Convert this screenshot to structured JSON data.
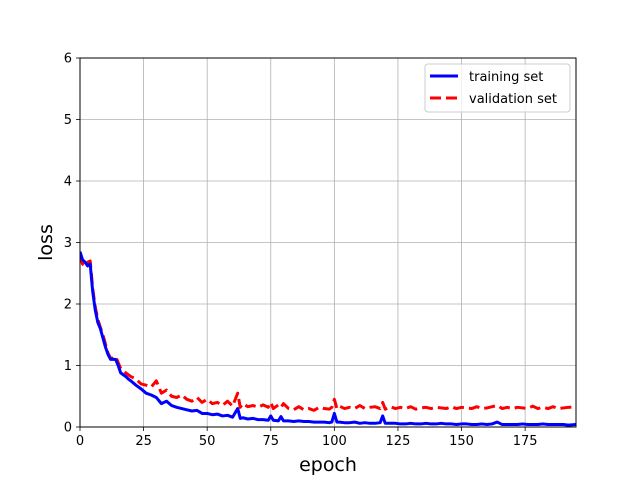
{
  "chart_data": {
    "type": "line",
    "xlabel": "epoch",
    "ylabel": "loss",
    "xlim": [
      0,
      195
    ],
    "ylim": [
      0,
      6
    ],
    "xticks": [
      0,
      25,
      50,
      75,
      100,
      125,
      150,
      175
    ],
    "yticks": [
      0,
      1,
      2,
      3,
      4,
      5,
      6
    ],
    "grid": true,
    "legend_position": "top-right",
    "series": [
      {
        "name": "training set",
        "color": "#0000ff",
        "style": "solid",
        "x": [
          0,
          1,
          2,
          3,
          4,
          5,
          6,
          7,
          8,
          9,
          10,
          11,
          12,
          13,
          14,
          15,
          16,
          17,
          18,
          19,
          20,
          22,
          24,
          26,
          28,
          30,
          32,
          34,
          36,
          38,
          40,
          42,
          44,
          46,
          48,
          50,
          52,
          54,
          56,
          58,
          60,
          62,
          63,
          64,
          66,
          68,
          70,
          72,
          74,
          75,
          76,
          78,
          79,
          80,
          82,
          84,
          86,
          88,
          90,
          92,
          94,
          96,
          98,
          99,
          100,
          101,
          102,
          104,
          106,
          108,
          110,
          112,
          114,
          116,
          118,
          119,
          120,
          122,
          124,
          126,
          128,
          130,
          132,
          134,
          136,
          138,
          140,
          142,
          144,
          146,
          148,
          150,
          152,
          154,
          156,
          158,
          160,
          162,
          164,
          166,
          168,
          170,
          172,
          174,
          176,
          178,
          180,
          182,
          184,
          186,
          188,
          190,
          192,
          195
        ],
        "y": [
          2.85,
          2.72,
          2.68,
          2.62,
          2.65,
          2.2,
          1.9,
          1.7,
          1.6,
          1.45,
          1.3,
          1.18,
          1.1,
          1.1,
          1.1,
          1.0,
          0.88,
          0.85,
          0.82,
          0.78,
          0.75,
          0.68,
          0.62,
          0.55,
          0.52,
          0.48,
          0.38,
          0.42,
          0.35,
          0.32,
          0.3,
          0.28,
          0.26,
          0.27,
          0.22,
          0.22,
          0.2,
          0.21,
          0.18,
          0.19,
          0.16,
          0.3,
          0.14,
          0.15,
          0.13,
          0.14,
          0.12,
          0.12,
          0.11,
          0.18,
          0.11,
          0.1,
          0.17,
          0.1,
          0.1,
          0.09,
          0.1,
          0.09,
          0.09,
          0.08,
          0.08,
          0.08,
          0.07,
          0.08,
          0.22,
          0.08,
          0.08,
          0.07,
          0.07,
          0.08,
          0.06,
          0.07,
          0.06,
          0.06,
          0.07,
          0.18,
          0.06,
          0.06,
          0.06,
          0.05,
          0.05,
          0.06,
          0.05,
          0.05,
          0.06,
          0.05,
          0.05,
          0.06,
          0.05,
          0.05,
          0.04,
          0.05,
          0.05,
          0.04,
          0.04,
          0.05,
          0.04,
          0.05,
          0.08,
          0.04,
          0.04,
          0.04,
          0.04,
          0.05,
          0.04,
          0.04,
          0.04,
          0.05,
          0.04,
          0.04,
          0.04,
          0.04,
          0.03,
          0.04
        ]
      },
      {
        "name": "validation set",
        "color": "#ff0000",
        "style": "dashed",
        "x": [
          0,
          1,
          2,
          3,
          4,
          5,
          6,
          7,
          8,
          9,
          10,
          11,
          12,
          13,
          14,
          15,
          16,
          17,
          18,
          19,
          20,
          22,
          24,
          26,
          28,
          30,
          32,
          34,
          36,
          38,
          40,
          42,
          44,
          46,
          48,
          50,
          52,
          54,
          56,
          58,
          60,
          62,
          63,
          64,
          66,
          68,
          70,
          72,
          74,
          75,
          76,
          78,
          79,
          80,
          82,
          84,
          86,
          88,
          90,
          92,
          94,
          96,
          98,
          99,
          100,
          101,
          102,
          104,
          106,
          108,
          110,
          112,
          114,
          116,
          118,
          119,
          120,
          122,
          124,
          126,
          128,
          130,
          132,
          134,
          136,
          138,
          140,
          142,
          144,
          146,
          148,
          150,
          152,
          154,
          156,
          158,
          160,
          162,
          164,
          166,
          168,
          170,
          172,
          174,
          176,
          178,
          180,
          182,
          184,
          186,
          188,
          190,
          192,
          195
        ],
        "y": [
          2.8,
          2.65,
          2.62,
          2.68,
          2.7,
          2.25,
          1.95,
          1.75,
          1.62,
          1.5,
          1.35,
          1.2,
          1.12,
          1.12,
          1.15,
          1.05,
          0.95,
          0.92,
          0.88,
          0.85,
          0.82,
          0.78,
          0.7,
          0.68,
          0.65,
          0.75,
          0.55,
          0.6,
          0.5,
          0.48,
          0.52,
          0.45,
          0.42,
          0.48,
          0.4,
          0.45,
          0.38,
          0.4,
          0.35,
          0.42,
          0.34,
          0.55,
          0.32,
          0.38,
          0.33,
          0.35,
          0.32,
          0.36,
          0.32,
          0.4,
          0.3,
          0.36,
          0.32,
          0.38,
          0.3,
          0.28,
          0.33,
          0.28,
          0.3,
          0.27,
          0.32,
          0.3,
          0.29,
          0.32,
          0.45,
          0.3,
          0.34,
          0.3,
          0.32,
          0.3,
          0.35,
          0.3,
          0.32,
          0.33,
          0.3,
          0.4,
          0.29,
          0.33,
          0.3,
          0.32,
          0.3,
          0.33,
          0.29,
          0.31,
          0.32,
          0.3,
          0.32,
          0.31,
          0.3,
          0.33,
          0.3,
          0.32,
          0.31,
          0.3,
          0.33,
          0.3,
          0.31,
          0.33,
          0.35,
          0.3,
          0.32,
          0.3,
          0.32,
          0.31,
          0.3,
          0.34,
          0.3,
          0.32,
          0.3,
          0.33,
          0.3,
          0.31,
          0.32,
          0.33
        ]
      }
    ]
  }
}
